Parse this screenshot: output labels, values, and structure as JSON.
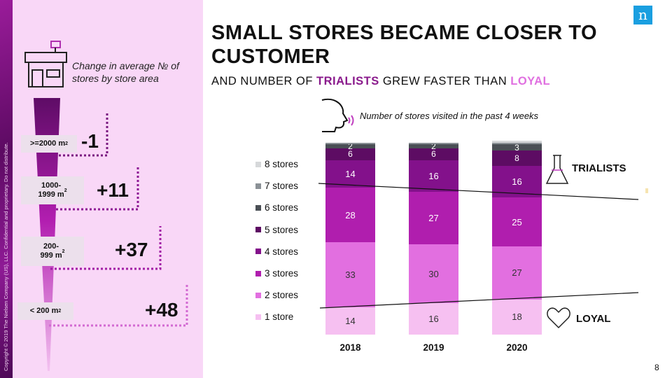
{
  "copyright": "Copyright © 2019 The Nielsen Company (US), LLC. Confidential and proprietary. Do not distribute.",
  "logo": "n",
  "page_number": "8",
  "left_panel": {
    "caption": "Change in average № of stores by store area",
    "levels": [
      {
        "label": ">=2000 m",
        "sup": "2",
        "value": "-1"
      },
      {
        "label": "1000-\n1999 m",
        "sup": "2",
        "value": "+11"
      },
      {
        "label": "200-\n999 m",
        "sup": "2",
        "value": "+37"
      },
      {
        "label": "< 200 m",
        "sup": "2",
        "value": "+48"
      }
    ]
  },
  "title": "SMALL STORES BECAME CLOSER TO CUSTOMER",
  "subtitle": {
    "pre": "AND NUMBER OF ",
    "trialists": "TRIALISTS",
    "mid": " GREW FASTER THAN ",
    "loyal": "LOYAL"
  },
  "note": "Number of stores visited in the past 4 weeks",
  "trialists_label": "TRIALISTS",
  "loyal_label": "LOYAL",
  "colors": [
    "#f6c0f1",
    "#e26fe0",
    "#b01eae",
    "#83118b",
    "#5d0c63",
    "#4a4f55",
    "#8b9196",
    "#d6d8da"
  ],
  "chart_data": {
    "type": "bar",
    "stacked": true,
    "title": "Number of stores visited in the past 4 weeks",
    "categories": [
      "2018",
      "2019",
      "2020"
    ],
    "series": [
      {
        "name": "1 store",
        "values": [
          14,
          16,
          18
        ]
      },
      {
        "name": "2 stores",
        "values": [
          33,
          30,
          27
        ]
      },
      {
        "name": "3 stores",
        "values": [
          28,
          27,
          25
        ]
      },
      {
        "name": "4 stores",
        "values": [
          14,
          16,
          16
        ]
      },
      {
        "name": "5 stores",
        "values": [
          6,
          6,
          8
        ]
      },
      {
        "name": "6 stores",
        "values": [
          2,
          2,
          3
        ]
      },
      {
        "name": "7 stores",
        "values": [
          1,
          1,
          1
        ]
      },
      {
        "name": "8 stores",
        "values": [
          0,
          0,
          1
        ]
      }
    ],
    "legend": "left",
    "ylim": [
      0,
      100
    ]
  }
}
